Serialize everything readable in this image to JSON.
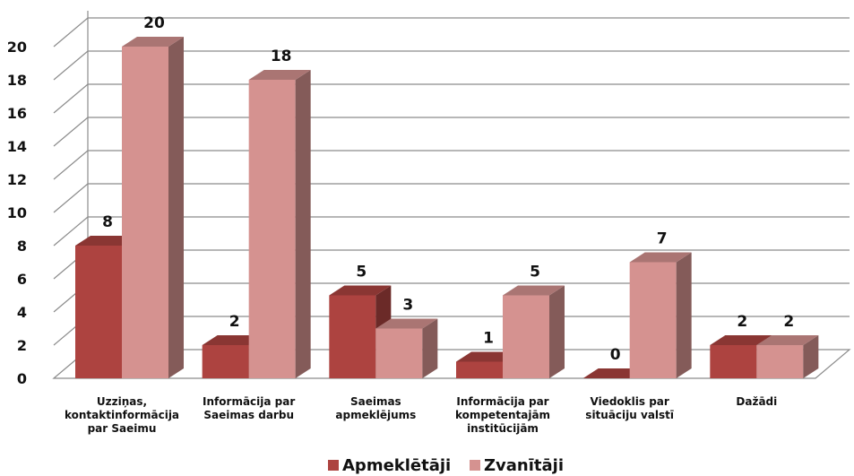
{
  "chart_data": {
    "type": "bar",
    "categories": [
      [
        "Uzziņas,",
        "kontaktinformācija",
        "par Saeimu"
      ],
      [
        "Informācija par",
        "Saeimas darbu"
      ],
      [
        "Saeimas",
        "apmeklējums"
      ],
      [
        "Informācija par",
        "kompetentajām",
        "institūcijām"
      ],
      [
        "Viedoklis par",
        "situāciju valstī"
      ],
      [
        "Dažādi"
      ]
    ],
    "series": [
      {
        "name": "Apmeklētāji",
        "values": [
          8,
          2,
          5,
          1,
          0,
          2
        ],
        "color": "#ad4340"
      },
      {
        "name": "Zvanītāji",
        "values": [
          20,
          18,
          3,
          5,
          7,
          2
        ],
        "color": "#d59290"
      }
    ],
    "y_ticks": [
      "0",
      "2",
      "4",
      "6",
      "8",
      "10",
      "12",
      "14",
      "16",
      "18",
      "20"
    ],
    "ylim": [
      0,
      20
    ],
    "grid": true,
    "legend": "bottom",
    "style": "3d-clustered-column"
  }
}
